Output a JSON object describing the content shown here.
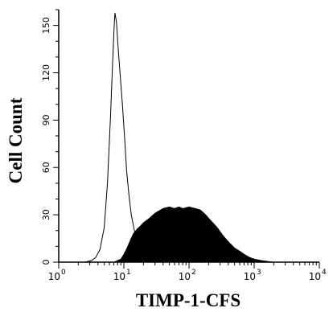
{
  "chart_data": {
    "type": "area",
    "title": "",
    "xlabel": "TIMP-1-CFS",
    "ylabel": "Cell Count",
    "x_scale": "log",
    "xlim": [
      1,
      10000
    ],
    "ylim": [
      0,
      160
    ],
    "x_ticks": [
      {
        "value": 1,
        "base": "10",
        "exp": "0"
      },
      {
        "value": 10,
        "base": "10",
        "exp": "1"
      },
      {
        "value": 100,
        "base": "10",
        "exp": "2"
      },
      {
        "value": 1000,
        "base": "10",
        "exp": "3"
      },
      {
        "value": 10000,
        "base": "10",
        "exp": "4"
      }
    ],
    "y_ticks": [
      {
        "value": 0,
        "label": "0"
      },
      {
        "value": 30,
        "label": "30"
      },
      {
        "value": 60,
        "label": "60"
      },
      {
        "value": 90,
        "label": "90"
      },
      {
        "value": 120,
        "label": "120"
      },
      {
        "value": 150,
        "label": "150"
      }
    ],
    "grid": false,
    "legend": "none",
    "series": [
      {
        "style": "outline",
        "color": "#000000",
        "points": [
          [
            1,
            0
          ],
          [
            2.5,
            0
          ],
          [
            3.2,
            1
          ],
          [
            3.7,
            3
          ],
          [
            4.3,
            8
          ],
          [
            5,
            22
          ],
          [
            5.6,
            50
          ],
          [
            6.2,
            90
          ],
          [
            6.7,
            125
          ],
          [
            7.1,
            150
          ],
          [
            7.3,
            158
          ],
          [
            7.7,
            152
          ],
          [
            8.2,
            135
          ],
          [
            8.8,
            118
          ],
          [
            9.5,
            100
          ],
          [
            10.3,
            78
          ],
          [
            11,
            58
          ],
          [
            12,
            42
          ],
          [
            13,
            30
          ],
          [
            14.5,
            20
          ],
          [
            16,
            12
          ],
          [
            18,
            7
          ],
          [
            21,
            3
          ],
          [
            25,
            1
          ],
          [
            40,
            0
          ],
          [
            10000,
            0
          ]
        ]
      },
      {
        "style": "filled",
        "color": "#000000",
        "points": [
          [
            1,
            0
          ],
          [
            7,
            0
          ],
          [
            8,
            1
          ],
          [
            9,
            2
          ],
          [
            10,
            5
          ],
          [
            11.2,
            9
          ],
          [
            12.6,
            14
          ],
          [
            14,
            18
          ],
          [
            16,
            21
          ],
          [
            18,
            23
          ],
          [
            20,
            25
          ],
          [
            25,
            28
          ],
          [
            30,
            31
          ],
          [
            40,
            34
          ],
          [
            50,
            35
          ],
          [
            60,
            34
          ],
          [
            70,
            35
          ],
          [
            80,
            34
          ],
          [
            100,
            35
          ],
          [
            125,
            34
          ],
          [
            150,
            33
          ],
          [
            180,
            30
          ],
          [
            220,
            26
          ],
          [
            270,
            22
          ],
          [
            330,
            17
          ],
          [
            400,
            13
          ],
          [
            500,
            9
          ],
          [
            600,
            7
          ],
          [
            700,
            5
          ],
          [
            850,
            3
          ],
          [
            1000,
            2
          ],
          [
            1300,
            1
          ],
          [
            2000,
            0
          ],
          [
            10000,
            0
          ]
        ]
      }
    ]
  }
}
